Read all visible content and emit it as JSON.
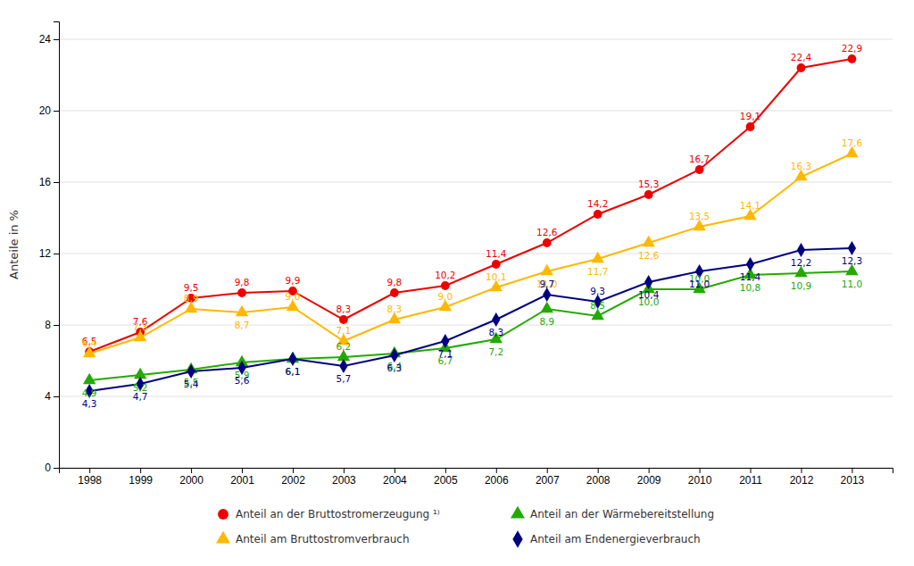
{
  "chart_data": {
    "type": "line",
    "ylabel": "Anteile in %",
    "x": [
      1998,
      1999,
      2000,
      2001,
      2002,
      2003,
      2004,
      2005,
      2006,
      2007,
      2008,
      2009,
      2010,
      2011,
      2012,
      2013
    ],
    "xlim": [
      1997.4,
      2013.8
    ],
    "xticks": [
      1998,
      1999,
      2000,
      2001,
      2002,
      2003,
      2004,
      2005,
      2006,
      2007,
      2008,
      2009,
      2010,
      2011,
      2012,
      2013
    ],
    "ylim": [
      0,
      25
    ],
    "yticks": [
      0,
      4,
      8,
      12,
      16,
      20,
      24
    ],
    "grid": true,
    "legend": "bottom",
    "data_labels": true,
    "series": [
      {
        "name": "Anteil an der Bruttostromerzeugung ¹⁾",
        "color": "#EE0000",
        "marker": "circle",
        "values": [
          6.5,
          7.6,
          9.5,
          9.8,
          9.9,
          8.3,
          9.8,
          10.2,
          11.4,
          12.6,
          14.2,
          15.3,
          16.7,
          19.1,
          22.4,
          22.9
        ],
        "value_labels": [
          "6,5",
          "7,6",
          "9,5",
          "9,8",
          "9,9",
          "8,3",
          "9,8",
          "10,2",
          "11,4",
          "12,6",
          "14,2",
          "15,3",
          "16,7",
          "19,1",
          "22,4",
          "22,9"
        ]
      },
      {
        "name": "Anteil am Bruttostromverbrauch",
        "color": "#FFB800",
        "marker": "triangle",
        "values": [
          6.4,
          7.3,
          8.9,
          8.7,
          9.0,
          7.1,
          8.3,
          9.0,
          10.1,
          11.0,
          11.7,
          12.6,
          13.5,
          14.1,
          16.3,
          17.6
        ],
        "value_labels": [
          "6,4",
          "7,3",
          "8,9",
          "8,7",
          "9,0",
          "7,1",
          "8,3",
          "9,0",
          "10,1",
          "11,0",
          "11,7",
          "12,6",
          "13,5",
          "14,1",
          "16,3",
          "17,6"
        ]
      },
      {
        "name": "Anteil an der Wärmebereitstellung",
        "color": "#22AA00",
        "marker": "triangle",
        "values": [
          4.9,
          5.2,
          5.5,
          5.9,
          6.1,
          6.2,
          6.4,
          6.7,
          7.2,
          8.9,
          8.5,
          10.0,
          10.0,
          10.8,
          10.9,
          11.0
        ],
        "value_labels": [
          "4,9",
          "5,2",
          "5,5",
          "5,9",
          "6,1",
          "6,2",
          "6,4",
          "6,7",
          "7,2",
          "8,9",
          "8,5",
          "10,0",
          "10,0",
          "10,8",
          "10,9",
          "11,0"
        ]
      },
      {
        "name": "Anteil am Endenergieverbrauch",
        "color": "#000080",
        "marker": "diamond",
        "values": [
          4.3,
          4.7,
          5.4,
          5.6,
          6.1,
          5.7,
          6.3,
          7.1,
          8.3,
          9.7,
          9.3,
          10.4,
          11.0,
          11.4,
          12.2,
          12.3
        ],
        "value_labels": [
          "4,3",
          "4,7",
          "5,4",
          "5,6",
          "6,1",
          "5,7",
          "6,3",
          "7,1",
          "8,3",
          "9,7",
          "9,3",
          "10,4",
          "11,0",
          "11,4",
          "12,2",
          "12,3"
        ]
      }
    ]
  }
}
